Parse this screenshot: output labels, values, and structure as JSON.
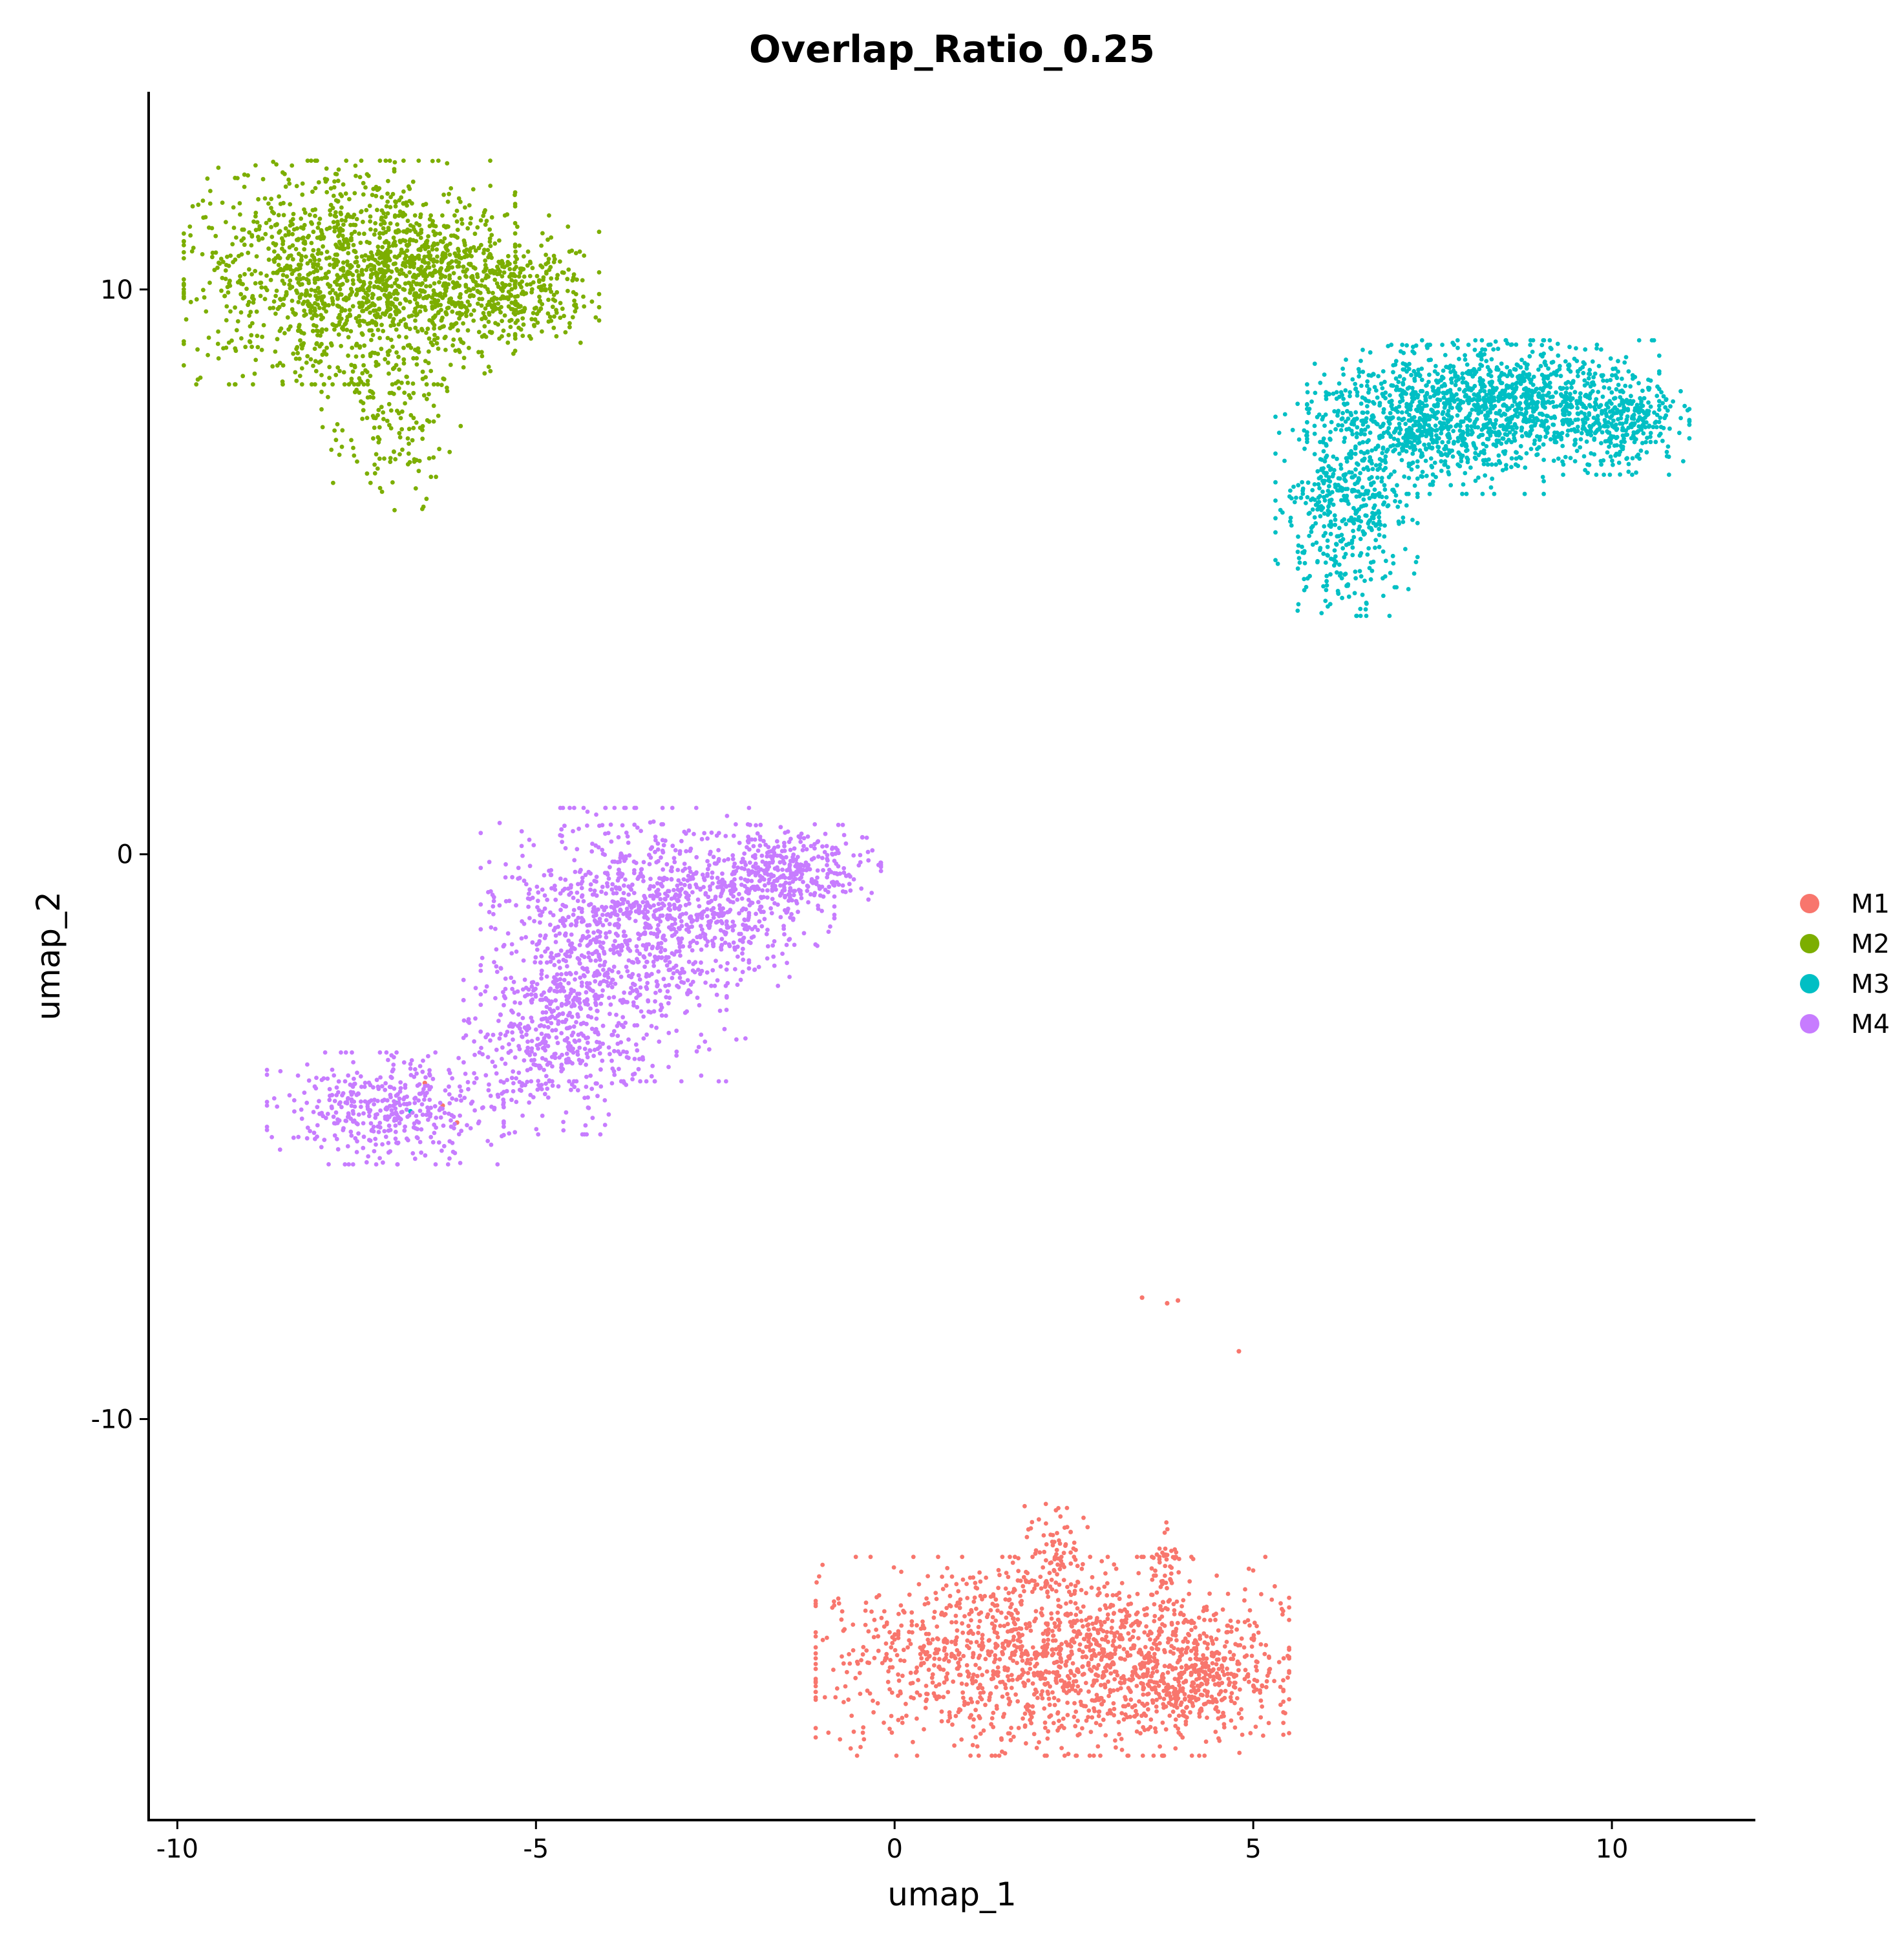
{
  "chart_data": {
    "type": "scatter",
    "title": "Overlap_Ratio_0.25",
    "xlabel": "umap_1",
    "ylabel": "umap_2",
    "xlim": [
      -10.4,
      12.0
    ],
    "ylim": [
      -17.1,
      13.5
    ],
    "xticks": [
      -10,
      -5,
      0,
      5,
      10
    ],
    "yticks": [
      -10,
      0,
      10
    ],
    "xtick_labels": [
      "-10",
      "-5",
      "0",
      "5",
      "10"
    ],
    "ytick_labels": [
      "-10",
      "0",
      "10"
    ],
    "grid": false,
    "legend_position": "right",
    "series": [
      {
        "name": "M1",
        "color": "#F8766D",
        "clusters": [
          {
            "center": [
              2.2,
              -14.2
            ],
            "spread": [
              1.5,
              0.8
            ],
            "count": 1500
          },
          {
            "center": [
              4.1,
              -14.6
            ],
            "spread": [
              0.6,
              0.45
            ],
            "count": 350
          },
          {
            "center": [
              2.25,
              -12.2
            ],
            "spread": [
              0.2,
              0.35
            ],
            "count": 60
          },
          {
            "center": [
              3.8,
              -12.6
            ],
            "spread": [
              0.1,
              0.35
            ],
            "count": 40
          }
        ],
        "outliers": [
          [
            3.45,
            -7.85
          ],
          [
            3.8,
            -7.95
          ],
          [
            3.95,
            -7.9
          ],
          [
            4.8,
            -8.8
          ],
          [
            -6.55,
            -4.05
          ],
          [
            -6.3,
            -4.45
          ],
          [
            -6.1,
            -4.75
          ]
        ]
      },
      {
        "name": "M2",
        "color": "#7CAE00",
        "clusters": [
          {
            "center": [
              -7.6,
              10.3
            ],
            "spread": [
              1.05,
              0.9
            ],
            "count": 1350
          },
          {
            "center": [
              -6.1,
              10.1
            ],
            "spread": [
              0.9,
              0.55
            ],
            "count": 450
          },
          {
            "center": [
              -5.1,
              9.9
            ],
            "spread": [
              0.35,
              0.35
            ],
            "count": 150
          },
          {
            "center": [
              -7.0,
              7.6
            ],
            "spread": [
              0.45,
              0.7
            ],
            "count": 160
          }
        ],
        "outliers": []
      },
      {
        "name": "M3",
        "color": "#00BFC4",
        "clusters": [
          {
            "center": [
              6.3,
              6.2
            ],
            "spread": [
              0.45,
              0.9
            ],
            "count": 500
          },
          {
            "center": [
              7.4,
              7.7
            ],
            "spread": [
              0.75,
              0.6
            ],
            "count": 750
          },
          {
            "center": [
              8.9,
              8.0
            ],
            "spread": [
              0.8,
              0.5
            ],
            "count": 750
          },
          {
            "center": [
              10.2,
              7.6
            ],
            "spread": [
              0.4,
              0.4
            ],
            "count": 250
          }
        ],
        "outliers": [
          [
            -6.95,
            -4.4
          ],
          [
            -6.75,
            -4.55
          ]
        ]
      },
      {
        "name": "M4",
        "color": "#C77CFF",
        "clusters": [
          {
            "center": [
              -3.9,
              -1.6
            ],
            "spread": [
              0.85,
              1.1
            ],
            "count": 850
          },
          {
            "center": [
              -2.6,
              -0.9
            ],
            "spread": [
              0.8,
              0.65
            ],
            "count": 500
          },
          {
            "center": [
              -1.4,
              -0.25
            ],
            "spread": [
              0.55,
              0.35
            ],
            "count": 300
          },
          {
            "center": [
              -4.8,
              -3.2
            ],
            "spread": [
              0.55,
              0.8
            ],
            "count": 400
          },
          {
            "center": [
              -7.1,
              -4.5
            ],
            "spread": [
              0.75,
              0.45
            ],
            "count": 420
          }
        ],
        "outliers": [
          [
            -0.45,
            0.3
          ]
        ]
      }
    ]
  }
}
